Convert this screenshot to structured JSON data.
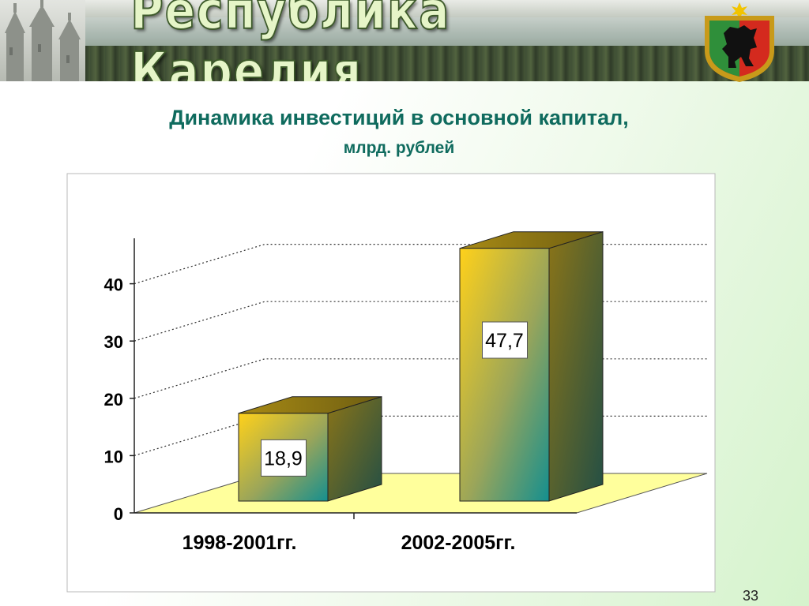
{
  "header": {
    "title": "Республика Карелия",
    "emblem": "karelia-coat-of-arms-icon"
  },
  "slide_number": "33",
  "colors": {
    "title_text": "#0f6b5e",
    "floor": "#ffff9c",
    "bar_front_top": "#ffd11a",
    "bar_front_bottom": "#148f8f",
    "bar_side": "#7a6a1a"
  },
  "chart_data": {
    "type": "bar",
    "title": "Динамика инвестиций в основной капитал,",
    "subtitle": "млрд. рублей",
    "categories": [
      "1998-2001гг.",
      "2002-2005гг."
    ],
    "values": [
      18.9,
      47.7
    ],
    "value_labels": [
      "18,9",
      "47,7"
    ],
    "yticks": [
      "0",
      "10",
      "20",
      "30",
      "40"
    ],
    "ylim": [
      0,
      40
    ],
    "grid": true,
    "legend": "none"
  }
}
